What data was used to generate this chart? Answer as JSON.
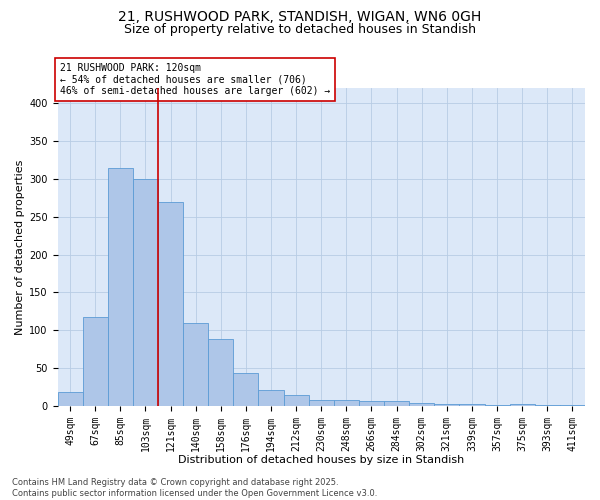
{
  "title_line1": "21, RUSHWOOD PARK, STANDISH, WIGAN, WN6 0GH",
  "title_line2": "Size of property relative to detached houses in Standish",
  "xlabel": "Distribution of detached houses by size in Standish",
  "ylabel": "Number of detached properties",
  "categories": [
    "49sqm",
    "67sqm",
    "85sqm",
    "103sqm",
    "121sqm",
    "140sqm",
    "158sqm",
    "176sqm",
    "194sqm",
    "212sqm",
    "230sqm",
    "248sqm",
    "266sqm",
    "284sqm",
    "302sqm",
    "321sqm",
    "339sqm",
    "357sqm",
    "375sqm",
    "393sqm",
    "411sqm"
  ],
  "values": [
    18,
    118,
    315,
    300,
    270,
    110,
    88,
    44,
    21,
    15,
    8,
    8,
    7,
    6,
    4,
    2,
    2,
    1,
    3,
    1,
    1
  ],
  "bar_color": "#aec6e8",
  "bar_edge_color": "#5b9bd5",
  "vline_x_index": 4,
  "vline_color": "#cc0000",
  "annotation_text": "21 RUSHWOOD PARK: 120sqm\n← 54% of detached houses are smaller (706)\n46% of semi-detached houses are larger (602) →",
  "annotation_box_color": "#ffffff",
  "annotation_box_edge": "#cc0000",
  "footnote": "Contains HM Land Registry data © Crown copyright and database right 2025.\nContains public sector information licensed under the Open Government Licence v3.0.",
  "ylim": [
    0,
    420
  ],
  "yticks": [
    0,
    50,
    100,
    150,
    200,
    250,
    300,
    350,
    400
  ],
  "bg_color": "#dce8f8",
  "grid_color": "#b8cce4",
  "title_fontsize": 10,
  "subtitle_fontsize": 9,
  "tick_fontsize": 7,
  "ylabel_fontsize": 8,
  "xlabel_fontsize": 8,
  "annotation_fontsize": 7,
  "footnote_fontsize": 6
}
